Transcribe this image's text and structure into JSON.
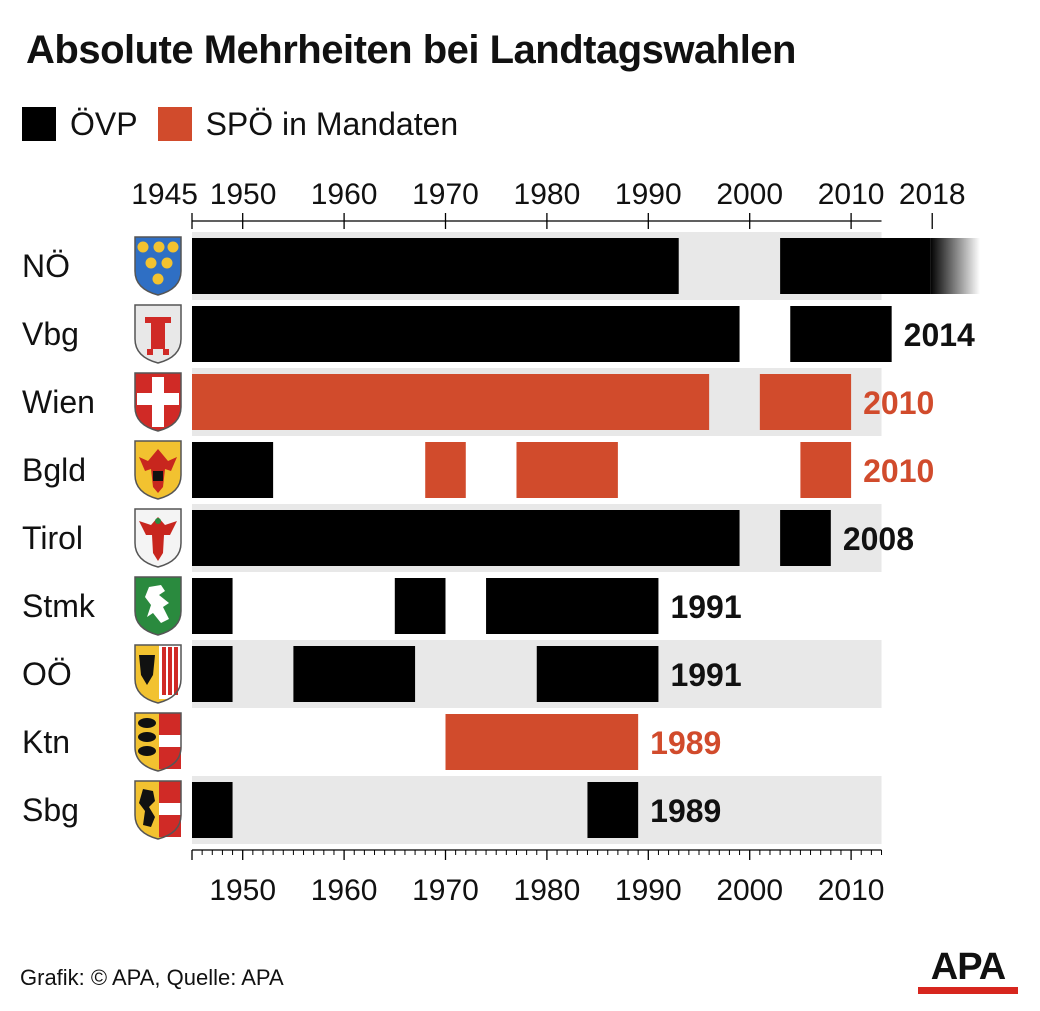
{
  "title": "Absolute Mehrheiten bei Landtagswahlen",
  "legend": [
    {
      "label": "ÖVP",
      "color": "#000000"
    },
    {
      "label": "SPÖ in Mandaten",
      "color": "#d14b2c"
    }
  ],
  "footer": "Grafik: © APA, Quelle: APA",
  "logo": "APA",
  "chart_data": {
    "type": "bar",
    "subtype": "timeline",
    "x_top_ticks": [
      "1945",
      "1950",
      "1960",
      "1970",
      "1980",
      "1990",
      "2000",
      "2010",
      "2018"
    ],
    "x_bottom_ticks": [
      "1950",
      "1960",
      "1970",
      "1980",
      "1990",
      "2000",
      "2010"
    ],
    "xlim": [
      1945,
      2018
    ],
    "colors": {
      "ÖVP": "#000000",
      "SPÖ": "#d14b2c",
      "band": "#e8e8e8"
    },
    "rows": [
      {
        "label": "NÖ",
        "coat": "coat-noe",
        "band": true,
        "end_label": "",
        "end_party": "ÖVP",
        "fade_out": true,
        "periods": [
          {
            "party": "ÖVP",
            "start": 1945,
            "end": 1993
          },
          {
            "party": "ÖVP",
            "start": 2003,
            "end": 2018
          }
        ]
      },
      {
        "label": "Vbg",
        "coat": "coat-vbg",
        "band": false,
        "end_label": "2014",
        "end_party": "ÖVP",
        "periods": [
          {
            "party": "ÖVP",
            "start": 1945,
            "end": 1999
          },
          {
            "party": "ÖVP",
            "start": 2004,
            "end": 2014
          }
        ]
      },
      {
        "label": "Wien",
        "coat": "coat-wien",
        "band": true,
        "end_label": "2010",
        "end_party": "SPÖ",
        "periods": [
          {
            "party": "SPÖ",
            "start": 1945,
            "end": 1996
          },
          {
            "party": "SPÖ",
            "start": 2001,
            "end": 2010
          }
        ]
      },
      {
        "label": "Bgld",
        "coat": "coat-bgld",
        "band": false,
        "end_label": "2010",
        "end_party": "SPÖ",
        "periods": [
          {
            "party": "ÖVP",
            "start": 1945,
            "end": 1953
          },
          {
            "party": "SPÖ",
            "start": 1968,
            "end": 1972
          },
          {
            "party": "SPÖ",
            "start": 1977,
            "end": 1987
          },
          {
            "party": "SPÖ",
            "start": 2005,
            "end": 2010
          }
        ]
      },
      {
        "label": "Tirol",
        "coat": "coat-tirol",
        "band": true,
        "end_label": "2008",
        "end_party": "ÖVP",
        "periods": [
          {
            "party": "ÖVP",
            "start": 1945,
            "end": 1999
          },
          {
            "party": "ÖVP",
            "start": 2003,
            "end": 2008
          }
        ]
      },
      {
        "label": "Stmk",
        "coat": "coat-stmk",
        "band": false,
        "end_label": "1991",
        "end_party": "ÖVP",
        "periods": [
          {
            "party": "ÖVP",
            "start": 1945,
            "end": 1949
          },
          {
            "party": "ÖVP",
            "start": 1965,
            "end": 1970
          },
          {
            "party": "ÖVP",
            "start": 1974,
            "end": 1991
          }
        ]
      },
      {
        "label": "OÖ",
        "coat": "coat-ooe",
        "band": true,
        "end_label": "1991",
        "end_party": "ÖVP",
        "periods": [
          {
            "party": "ÖVP",
            "start": 1945,
            "end": 1949
          },
          {
            "party": "ÖVP",
            "start": 1955,
            "end": 1967
          },
          {
            "party": "ÖVP",
            "start": 1979,
            "end": 1991
          }
        ]
      },
      {
        "label": "Ktn",
        "coat": "coat-ktn",
        "band": false,
        "end_label": "1989",
        "end_party": "SPÖ",
        "periods": [
          {
            "party": "SPÖ",
            "start": 1970,
            "end": 1989
          }
        ]
      },
      {
        "label": "Sbg",
        "coat": "coat-sbg",
        "band": true,
        "end_label": "1989",
        "end_party": "ÖVP",
        "periods": [
          {
            "party": "ÖVP",
            "start": 1945,
            "end": 1949
          },
          {
            "party": "ÖVP",
            "start": 1984,
            "end": 1989
          }
        ]
      }
    ]
  }
}
